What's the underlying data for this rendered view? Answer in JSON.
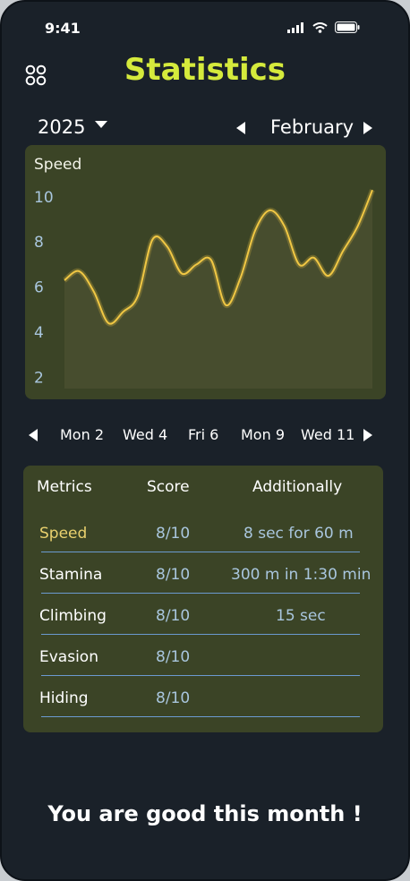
{
  "status": {
    "time": "9:41"
  },
  "header": {
    "title": "Statistics",
    "menu_icon": "grid-icon"
  },
  "selector": {
    "year": "2025",
    "month": "February"
  },
  "chart_data": {
    "type": "line",
    "title": "Speed",
    "xlabel": "",
    "ylabel": "",
    "ylim": [
      1.5,
      11.5
    ],
    "yticks": [
      2,
      4,
      6,
      8,
      10
    ],
    "series": [
      {
        "values": [
          6.3,
          6.7,
          5.8,
          4.4,
          4.9,
          5.6,
          8.1,
          7.8,
          6.6,
          7.0,
          7.2,
          5.2,
          6.4,
          8.5,
          9.4,
          8.7,
          7.0,
          7.3,
          6.5,
          7.6,
          8.7,
          10.3
        ]
      }
    ],
    "line_color": "#f0c744",
    "area_color": "#474d2e"
  },
  "days": {
    "prev_icon": "arrow-left-icon",
    "next_icon": "arrow-right-icon",
    "items": [
      "Mon 2",
      "Wed 4",
      "Fri 6",
      "Mon 9",
      "Wed 11"
    ]
  },
  "table": {
    "headers": [
      "Metrics",
      "Score",
      "Additionally"
    ],
    "rows": [
      {
        "metric": "Speed",
        "score": "8/10",
        "extra": "8 sec for 60 m"
      },
      {
        "metric": "Stamina",
        "score": "8/10",
        "extra": "300 m in 1:30 min"
      },
      {
        "metric": "Climbing",
        "score": "8/10",
        "extra": "15 sec"
      },
      {
        "metric": "Evasion",
        "score": "8/10",
        "extra": ""
      },
      {
        "metric": "Hiding",
        "score": "8/10",
        "extra": ""
      }
    ]
  },
  "footer": {
    "message": "You are good this month !"
  }
}
